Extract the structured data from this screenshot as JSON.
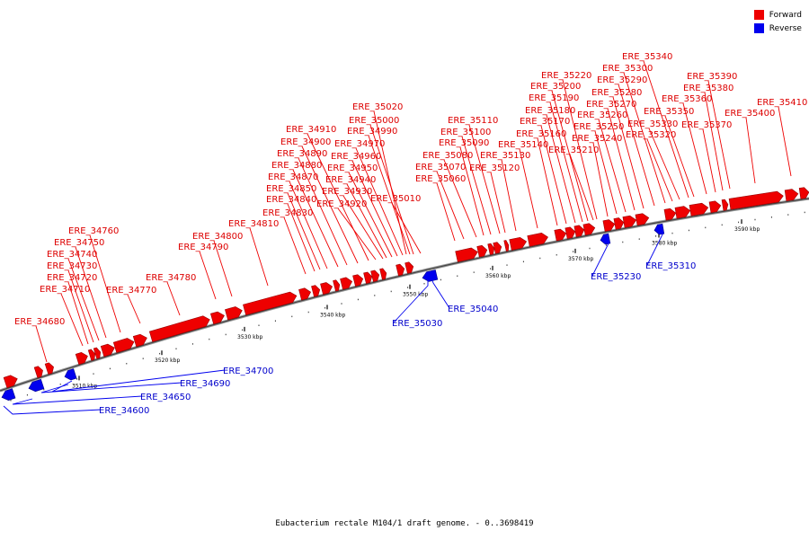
{
  "legend": [
    {
      "label": "Forward",
      "color": "#ee0000"
    },
    {
      "label": "Reverse",
      "color": "#0000ee"
    }
  ],
  "caption": "Eubacterium rectale M104/1 draft genome. - 0..3698419",
  "colors": {
    "forward": "#ee0000",
    "reverse": "#0000ee",
    "backbone": "#888888"
  },
  "scale": {
    "ticks": [
      {
        "label": "3510 kbp"
      },
      {
        "label": "3520 kbp"
      },
      {
        "label": "3530 kbp"
      },
      {
        "label": "3540 kbp"
      },
      {
        "label": "3550 kbp"
      },
      {
        "label": "3560 kbp"
      },
      {
        "label": "3570 kbp"
      },
      {
        "label": "3580 kbp"
      },
      {
        "label": "3590 kbp"
      }
    ]
  },
  "forward_genes": [
    "ERE_34680",
    "ERE_34710",
    "ERE_34720",
    "ERE_34730",
    "ERE_34740",
    "ERE_34750",
    "ERE_34760",
    "ERE_34770",
    "ERE_34780",
    "ERE_34790",
    "ERE_34800",
    "ERE_34810",
    "ERE_34830",
    "ERE_34840",
    "ERE_34850",
    "ERE_34870",
    "ERE_34880",
    "ERE_34890",
    "ERE_34900",
    "ERE_34910",
    "ERE_34920",
    "ERE_34930",
    "ERE_34940",
    "ERE_34950",
    "ERE_34960",
    "ERE_34970",
    "ERE_34990",
    "ERE_35000",
    "ERE_35010",
    "ERE_35020",
    "ERE_35060",
    "ERE_35070",
    "ERE_35080",
    "ERE_35090",
    "ERE_35100",
    "ERE_35110",
    "ERE_35120",
    "ERE_35130",
    "ERE_35140",
    "ERE_35160",
    "ERE_35170",
    "ERE_35180",
    "ERE_35190",
    "ERE_35200",
    "ERE_35210",
    "ERE_35220",
    "ERE_35240",
    "ERE_35250",
    "ERE_35260",
    "ERE_35270",
    "ERE_35280",
    "ERE_35290",
    "ERE_35300",
    "ERE_35320",
    "ERE_35330",
    "ERE_35340",
    "ERE_35350",
    "ERE_35360",
    "ERE_35370",
    "ERE_35380",
    "ERE_35390",
    "ERE_35400",
    "ERE_35410"
  ],
  "reverse_genes": [
    "ERE_34600",
    "ERE_34650",
    "ERE_34690",
    "ERE_34700",
    "ERE_35030",
    "ERE_35040",
    "ERE_35230",
    "ERE_35310"
  ]
}
